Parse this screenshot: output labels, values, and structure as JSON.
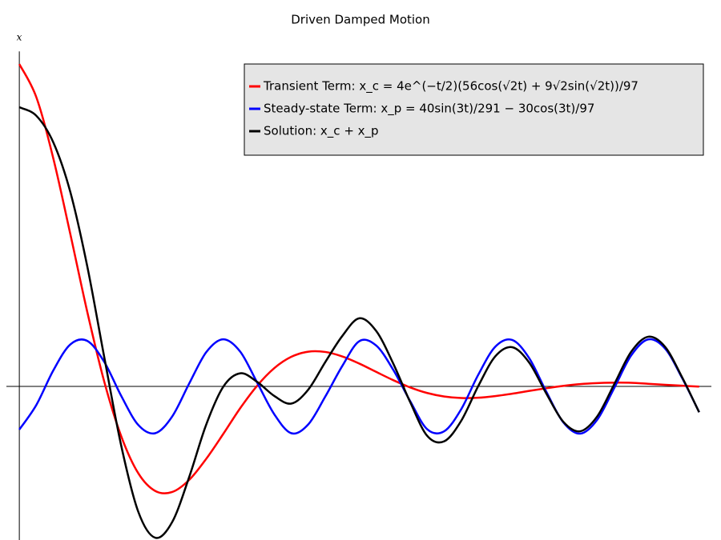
{
  "chart_data": {
    "type": "line",
    "title": "Driven Damped Motion",
    "y_label": "x",
    "x": [
      0,
      0.25,
      0.5,
      0.75,
      1,
      1.25,
      1.5,
      1.75,
      2,
      2.25,
      2.5,
      2.75,
      3,
      3.25,
      3.5,
      3.75,
      4,
      4.25,
      4.5,
      4.75,
      5,
      5.25,
      5.5,
      5.75,
      6,
      6.25,
      6.5,
      6.75,
      7,
      7.25,
      7.5,
      7.75,
      8,
      8.25,
      8.5,
      8.75,
      9,
      9.25,
      9.5,
      9.75,
      10
    ],
    "xlim": [
      -0.19,
      10.18
    ],
    "ylim": [
      -1.1,
      2.4
    ],
    "grid": false,
    "legend": "upper right",
    "series": [
      {
        "name": "Transient Term: x_c = 4e^(−t/2)(56cos(√2t) + 9√2sin(√2t))/97",
        "color": "#ff0000",
        "values": [
          2.309,
          2.072,
          1.633,
          1.092,
          0.533,
          0.033,
          -0.358,
          -0.622,
          -0.749,
          -0.756,
          -0.669,
          -0.518,
          -0.34,
          -0.155,
          0.006,
          0.131,
          0.212,
          0.249,
          0.247,
          0.215,
          0.164,
          0.104,
          0.045,
          -0.007,
          -0.047,
          -0.072,
          -0.083,
          -0.081,
          -0.069,
          -0.052,
          -0.032,
          -0.013,
          0.004,
          0.017,
          0.024,
          0.027,
          0.026,
          0.019,
          0.012,
          0.005,
          -0.001
        ]
      },
      {
        "name": "Steady-state Term: x_p = 40sin(3t)/291 − 30cos(3t)/97",
        "color": "#0000ff",
        "values": [
          -0.309,
          -0.133,
          0.115,
          0.301,
          0.326,
          0.175,
          -0.069,
          -0.276,
          -0.335,
          -0.214,
          0.022,
          0.246,
          0.338,
          0.249,
          0.026,
          -0.199,
          -0.335,
          -0.272,
          -0.073,
          0.146,
          0.324,
          0.293,
          0.119,
          -0.106,
          -0.307,
          -0.321,
          -0.163,
          0.083,
          0.284,
          0.333,
          0.203,
          -0.036,
          -0.256,
          -0.338,
          -0.239,
          -0.012,
          0.222,
          0.337,
          0.271,
          0.06,
          -0.184
        ]
      },
      {
        "name": "Solution: x_c + x_p",
        "color": "#000000",
        "values": [
          2.0,
          1.939,
          1.748,
          1.393,
          0.859,
          0.208,
          -0.427,
          -0.898,
          -1.084,
          -0.97,
          -0.647,
          -0.272,
          -0.002,
          0.094,
          0.032,
          -0.068,
          -0.123,
          -0.023,
          0.174,
          0.361,
          0.488,
          0.397,
          0.164,
          -0.113,
          -0.354,
          -0.393,
          -0.246,
          0.002,
          0.215,
          0.281,
          0.171,
          -0.049,
          -0.252,
          -0.321,
          -0.215,
          0.015,
          0.248,
          0.356,
          0.283,
          0.065,
          -0.185
        ]
      }
    ]
  }
}
